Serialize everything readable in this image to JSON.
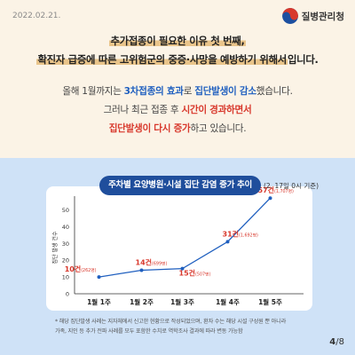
{
  "header": {
    "date": "2022.02.21.",
    "org": "질병관리청"
  },
  "headline": {
    "line1": "추가접종이 필요한 이유 첫 번째,",
    "line2_hl": "확진자 급증에 따른 고위험군의 중증·사망을 예방하기 위해서",
    "line2_tail": "입니다."
  },
  "body": {
    "l1_a": "올해 1월까지는 ",
    "l1_b": "3차접종의 효과",
    "l1_c": "로 ",
    "l1_d": "집단발생이 감소",
    "l1_e": "했습니다.",
    "l2_a": "그러나 최근 접종 후 ",
    "l2_b": "시간이 경과하면서",
    "l3_a": "집단발생이 다시 증가",
    "l3_b": "하고 있습니다."
  },
  "chart_title": "주차별 요양병원·시설 집단 감염 증가 추이",
  "as_of": "(2. 17일 0시 기준)",
  "footnote": {
    "line1": "* 해당 집단발생 사례는 지자체에서 신고한 현황으로 작성되었으며, 환자 수는 해당 시설 구성원 뿐 아니라",
    "line2": "가족, 지인 등 추가 전파 사례를 모두 포함한 수치로 역학조사 결과에 따라 변동 가능함"
  },
  "page": {
    "current": "4",
    "total": "/8"
  },
  "colors": {
    "line": "#1f5fbf",
    "label_red": "#d8382c",
    "pill": "#1f4e9c"
  },
  "chart_data": {
    "type": "line",
    "categories": [
      "1월 1주",
      "1월 2주",
      "1월 3주",
      "1월 4주",
      "1월 5주"
    ],
    "series": [
      {
        "values": [
          10,
          14,
          15,
          31,
          57
        ],
        "labels": [
          "10건",
          "14건",
          "15건",
          "31건",
          "57건"
        ],
        "sub_labels": [
          "(262명)",
          "(699명)",
          "(507명)",
          "(1,692명)",
          "(1,707명)"
        ]
      }
    ],
    "ylabel": "집단 발생 건수",
    "ylim": [
      0,
      55
    ],
    "yticks": [
      0,
      10,
      20,
      30,
      40,
      50
    ],
    "grid": false
  }
}
